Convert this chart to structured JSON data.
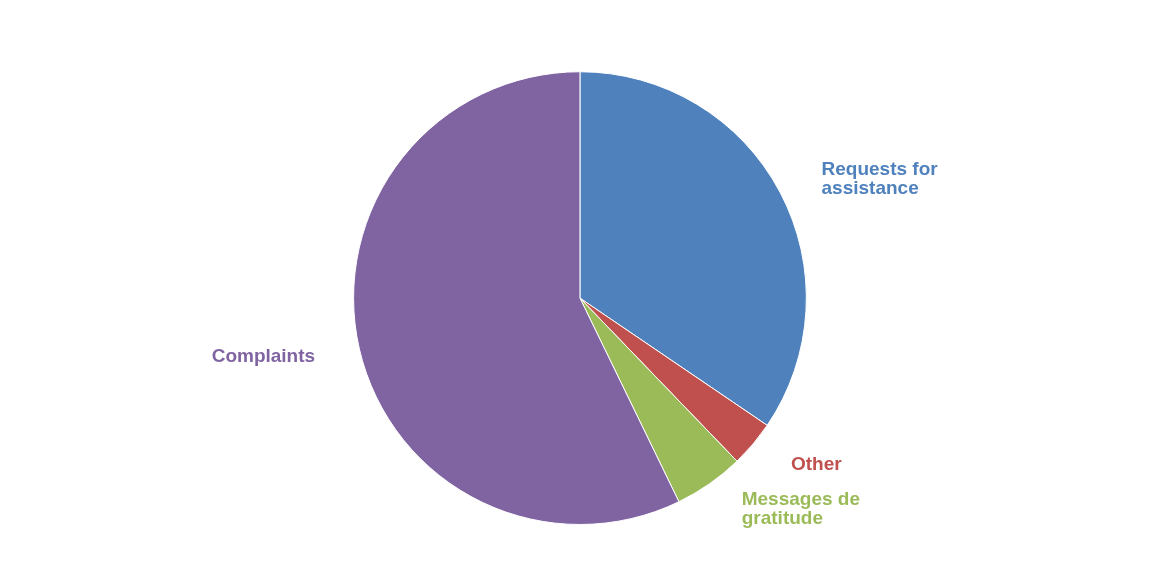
{
  "chart_data": {
    "type": "pie",
    "categories": [
      "Requests for assistance",
      "Other",
      "Messages de gratitude",
      "Complaints"
    ],
    "values": [
      34.5,
      3.3,
      5.0,
      57.2
    ],
    "colors": [
      "#4f81bd",
      "#c0504d",
      "#9bbb59",
      "#8064a2"
    ],
    "legend": false
  }
}
